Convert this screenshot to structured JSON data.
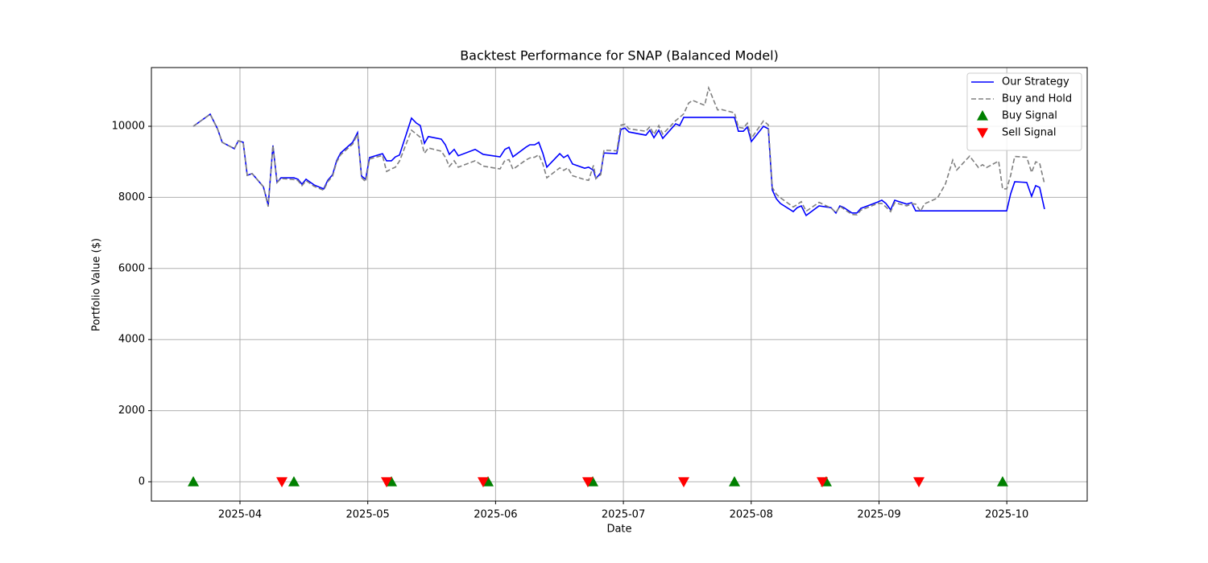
{
  "chart_data": {
    "type": "line",
    "title": "Backtest Performance for SNAP (Balanced Model)",
    "x_label": "Date",
    "y_label": "Portfolio Value ($)",
    "xlim": [
      3.307,
      10.629
    ],
    "ylim": [
      -543,
      11652
    ],
    "xticks": [
      {
        "value": 4,
        "label": "2025-04"
      },
      {
        "value": 5,
        "label": "2025-05"
      },
      {
        "value": 6,
        "label": "2025-06"
      },
      {
        "value": 7,
        "label": "2025-07"
      },
      {
        "value": 8,
        "label": "2025-08"
      },
      {
        "value": 9,
        "label": "2025-09"
      },
      {
        "value": 10,
        "label": "2025-10"
      }
    ],
    "yticks": [
      0,
      2000,
      4000,
      6000,
      8000,
      10000
    ],
    "grid": true,
    "legend_position": "upper right",
    "x": [
      3.635,
      3.767,
      3.824,
      3.861,
      3.956,
      3.987,
      4.025,
      4.057,
      4.095,
      4.183,
      4.221,
      4.258,
      4.29,
      4.321,
      4.422,
      4.454,
      4.485,
      4.517,
      4.58,
      4.655,
      4.687,
      4.725,
      4.756,
      4.788,
      4.882,
      4.92,
      4.951,
      4.983,
      5.014,
      5.115,
      5.147,
      5.185,
      5.216,
      5.248,
      5.342,
      5.38,
      5.411,
      5.443,
      5.474,
      5.575,
      5.607,
      5.638,
      5.676,
      5.708,
      5.84,
      5.903,
      6.035,
      6.073,
      6.105,
      6.136,
      6.237,
      6.268,
      6.306,
      6.338,
      6.369,
      6.401,
      6.502,
      6.533,
      6.565,
      6.602,
      6.697,
      6.728,
      6.766,
      6.785,
      6.823,
      6.848,
      6.949,
      6.98,
      7.012,
      7.043,
      7.176,
      7.207,
      7.239,
      7.277,
      7.308,
      7.409,
      7.44,
      7.472,
      7.51,
      7.541,
      7.636,
      7.667,
      7.737,
      7.768,
      7.869,
      7.9,
      7.938,
      7.97,
      8.001,
      8.096,
      8.134,
      8.165,
      8.197,
      8.228,
      8.329,
      8.36,
      8.392,
      8.43,
      8.531,
      8.625,
      8.663,
      8.694,
      8.726,
      8.789,
      8.827,
      8.858,
      8.991,
      9.022,
      9.054,
      9.091,
      9.123,
      9.217,
      9.255,
      9.287,
      9.325,
      9.356,
      9.457,
      9.52,
      9.577,
      9.608,
      9.709,
      9.778,
      9.81,
      9.841,
      9.936,
      9.967,
      9.999,
      10.03,
      10.062,
      10.156,
      10.194,
      10.226,
      10.257,
      10.295
    ],
    "series": [
      {
        "name": "Our Strategy",
        "color": "#0000ff",
        "linestyle": "solid",
        "values": [
          10000,
          10340,
          9930,
          9550,
          9370,
          9590,
          9550,
          8620,
          8670,
          8300,
          7780,
          9460,
          8420,
          8550,
          8550,
          8510,
          8370,
          8510,
          8350,
          8240,
          8480,
          8640,
          9030,
          9250,
          9550,
          9820,
          8600,
          8510,
          9120,
          9230,
          9030,
          9030,
          9140,
          9190,
          10230,
          10090,
          10020,
          9520,
          9710,
          9640,
          9480,
          9210,
          9350,
          9170,
          9350,
          9210,
          9140,
          9350,
          9410,
          9140,
          9410,
          9480,
          9480,
          9550,
          9250,
          8850,
          9230,
          9120,
          9190,
          8940,
          8820,
          8850,
          8760,
          8530,
          8690,
          9250,
          9230,
          9910,
          9950,
          9840,
          9750,
          9890,
          9680,
          9890,
          9660,
          10070,
          10020,
          10250,
          10250,
          10250,
          10250,
          10250,
          10250,
          10250,
          10250,
          9860,
          9860,
          9980,
          9570,
          10000,
          9930,
          8210,
          7960,
          7830,
          7600,
          7710,
          7760,
          7490,
          7760,
          7710,
          7560,
          7760,
          7710,
          7560,
          7560,
          7690,
          7870,
          7920,
          7830,
          7650,
          7920,
          7810,
          7850,
          7620,
          7620,
          7620,
          7620,
          7620,
          7620,
          7620,
          7620,
          7620,
          7620,
          7620,
          7620,
          7620,
          7620,
          8100,
          8440,
          8420,
          8030,
          8330,
          8280,
          7670
        ]
      },
      {
        "name": "Buy and Hold",
        "color": "#808080",
        "linestyle": "dashed",
        "values": [
          10000,
          10340,
          9930,
          9550,
          9370,
          9590,
          9550,
          8620,
          8670,
          8300,
          7740,
          9460,
          8420,
          8530,
          8500,
          8470,
          8330,
          8470,
          8310,
          8200,
          8440,
          8600,
          8990,
          9200,
          9500,
          9780,
          8560,
          8440,
          9080,
          9180,
          8730,
          8800,
          8850,
          9020,
          9890,
          9780,
          9690,
          9240,
          9390,
          9300,
          9130,
          8870,
          9030,
          8850,
          9030,
          8880,
          8800,
          9040,
          9060,
          8790,
          9050,
          9110,
          9130,
          9200,
          8950,
          8550,
          8830,
          8760,
          8830,
          8610,
          8500,
          8480,
          8900,
          8530,
          8640,
          9330,
          9310,
          10030,
          10060,
          9930,
          9860,
          9990,
          9770,
          10020,
          9780,
          10160,
          10250,
          10350,
          10650,
          10730,
          10590,
          11080,
          10460,
          10470,
          10380,
          9970,
          9950,
          10090,
          9660,
          10150,
          10040,
          8280,
          8090,
          7990,
          7730,
          7800,
          7880,
          7610,
          7860,
          7700,
          7570,
          7750,
          7670,
          7520,
          7510,
          7640,
          7830,
          7830,
          7730,
          7600,
          7850,
          7760,
          7820,
          7810,
          7610,
          7820,
          7980,
          8380,
          9050,
          8770,
          9160,
          8840,
          8920,
          8840,
          9020,
          8240,
          8240,
          8620,
          9150,
          9130,
          8700,
          9000,
          8960,
          8380
        ]
      },
      {
        "name": "Buy Signal",
        "color": "#008000",
        "marker": "triangle-up",
        "x": [
          3.635,
          4.422,
          5.185,
          5.941,
          6.76,
          7.869,
          8.587,
          9.967
        ],
        "values": [
          0,
          0,
          0,
          0,
          0,
          0,
          0,
          0
        ]
      },
      {
        "name": "Sell Signal",
        "color": "#ff0000",
        "marker": "triangle-down",
        "x": [
          4.328,
          5.147,
          5.903,
          6.722,
          7.472,
          8.556,
          9.312
        ],
        "values": [
          0,
          0,
          0,
          0,
          0,
          0,
          0
        ]
      }
    ]
  }
}
